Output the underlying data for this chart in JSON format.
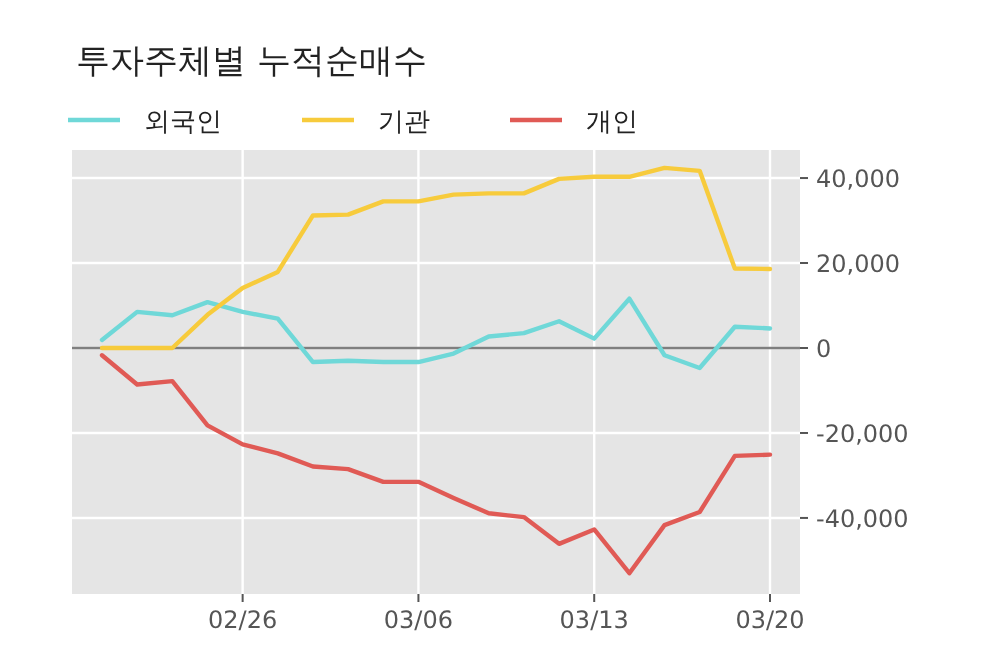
{
  "chart_data": {
    "type": "line",
    "title": "투자주체별 누적순매수",
    "categories": [
      null,
      null,
      null,
      null,
      "02/26",
      null,
      null,
      null,
      null,
      "03/06",
      null,
      null,
      null,
      null,
      "03/13",
      null,
      null,
      null,
      null,
      "03/20"
    ],
    "series": [
      {
        "name": "외국인",
        "color": "#6fd8d8",
        "values": [
          1900,
          8500,
          7700,
          10800,
          8500,
          6900,
          -3300,
          -3000,
          -3300,
          -3300,
          -1300,
          2700,
          3500,
          6300,
          2200,
          11600,
          -1700,
          -4700,
          5000,
          4600
        ]
      },
      {
        "name": "기관",
        "color": "#f7cb3c",
        "values": [
          0,
          0,
          0,
          7800,
          14100,
          17900,
          31200,
          31400,
          34500,
          34500,
          36100,
          36400,
          36400,
          39800,
          40300,
          40300,
          42400,
          41700,
          18700,
          18600
        ]
      },
      {
        "name": "개인",
        "color": "#e05a55",
        "values": [
          -1700,
          -8600,
          -7800,
          -18200,
          -22700,
          -24800,
          -27900,
          -28500,
          -31500,
          -31500,
          -35300,
          -38900,
          -39800,
          -46100,
          -42700,
          -53000,
          -41700,
          -38600,
          -25400,
          -25100
        ]
      }
    ],
    "ylim": [
      -57900,
      46600
    ],
    "yticks": [
      {
        "value": -40000,
        "label": "-40,000"
      },
      {
        "value": -20000,
        "label": "-20,000"
      },
      0,
      {
        "value": 20000,
        "label": "20,000"
      },
      {
        "value": 40000,
        "label": "40,000"
      }
    ],
    "ref_lines": [
      {
        "axis": "y",
        "value": 0,
        "color": "#7f7f7f"
      }
    ],
    "grid": true,
    "legend": "top",
    "marker": "none",
    "line_style": "solid"
  }
}
